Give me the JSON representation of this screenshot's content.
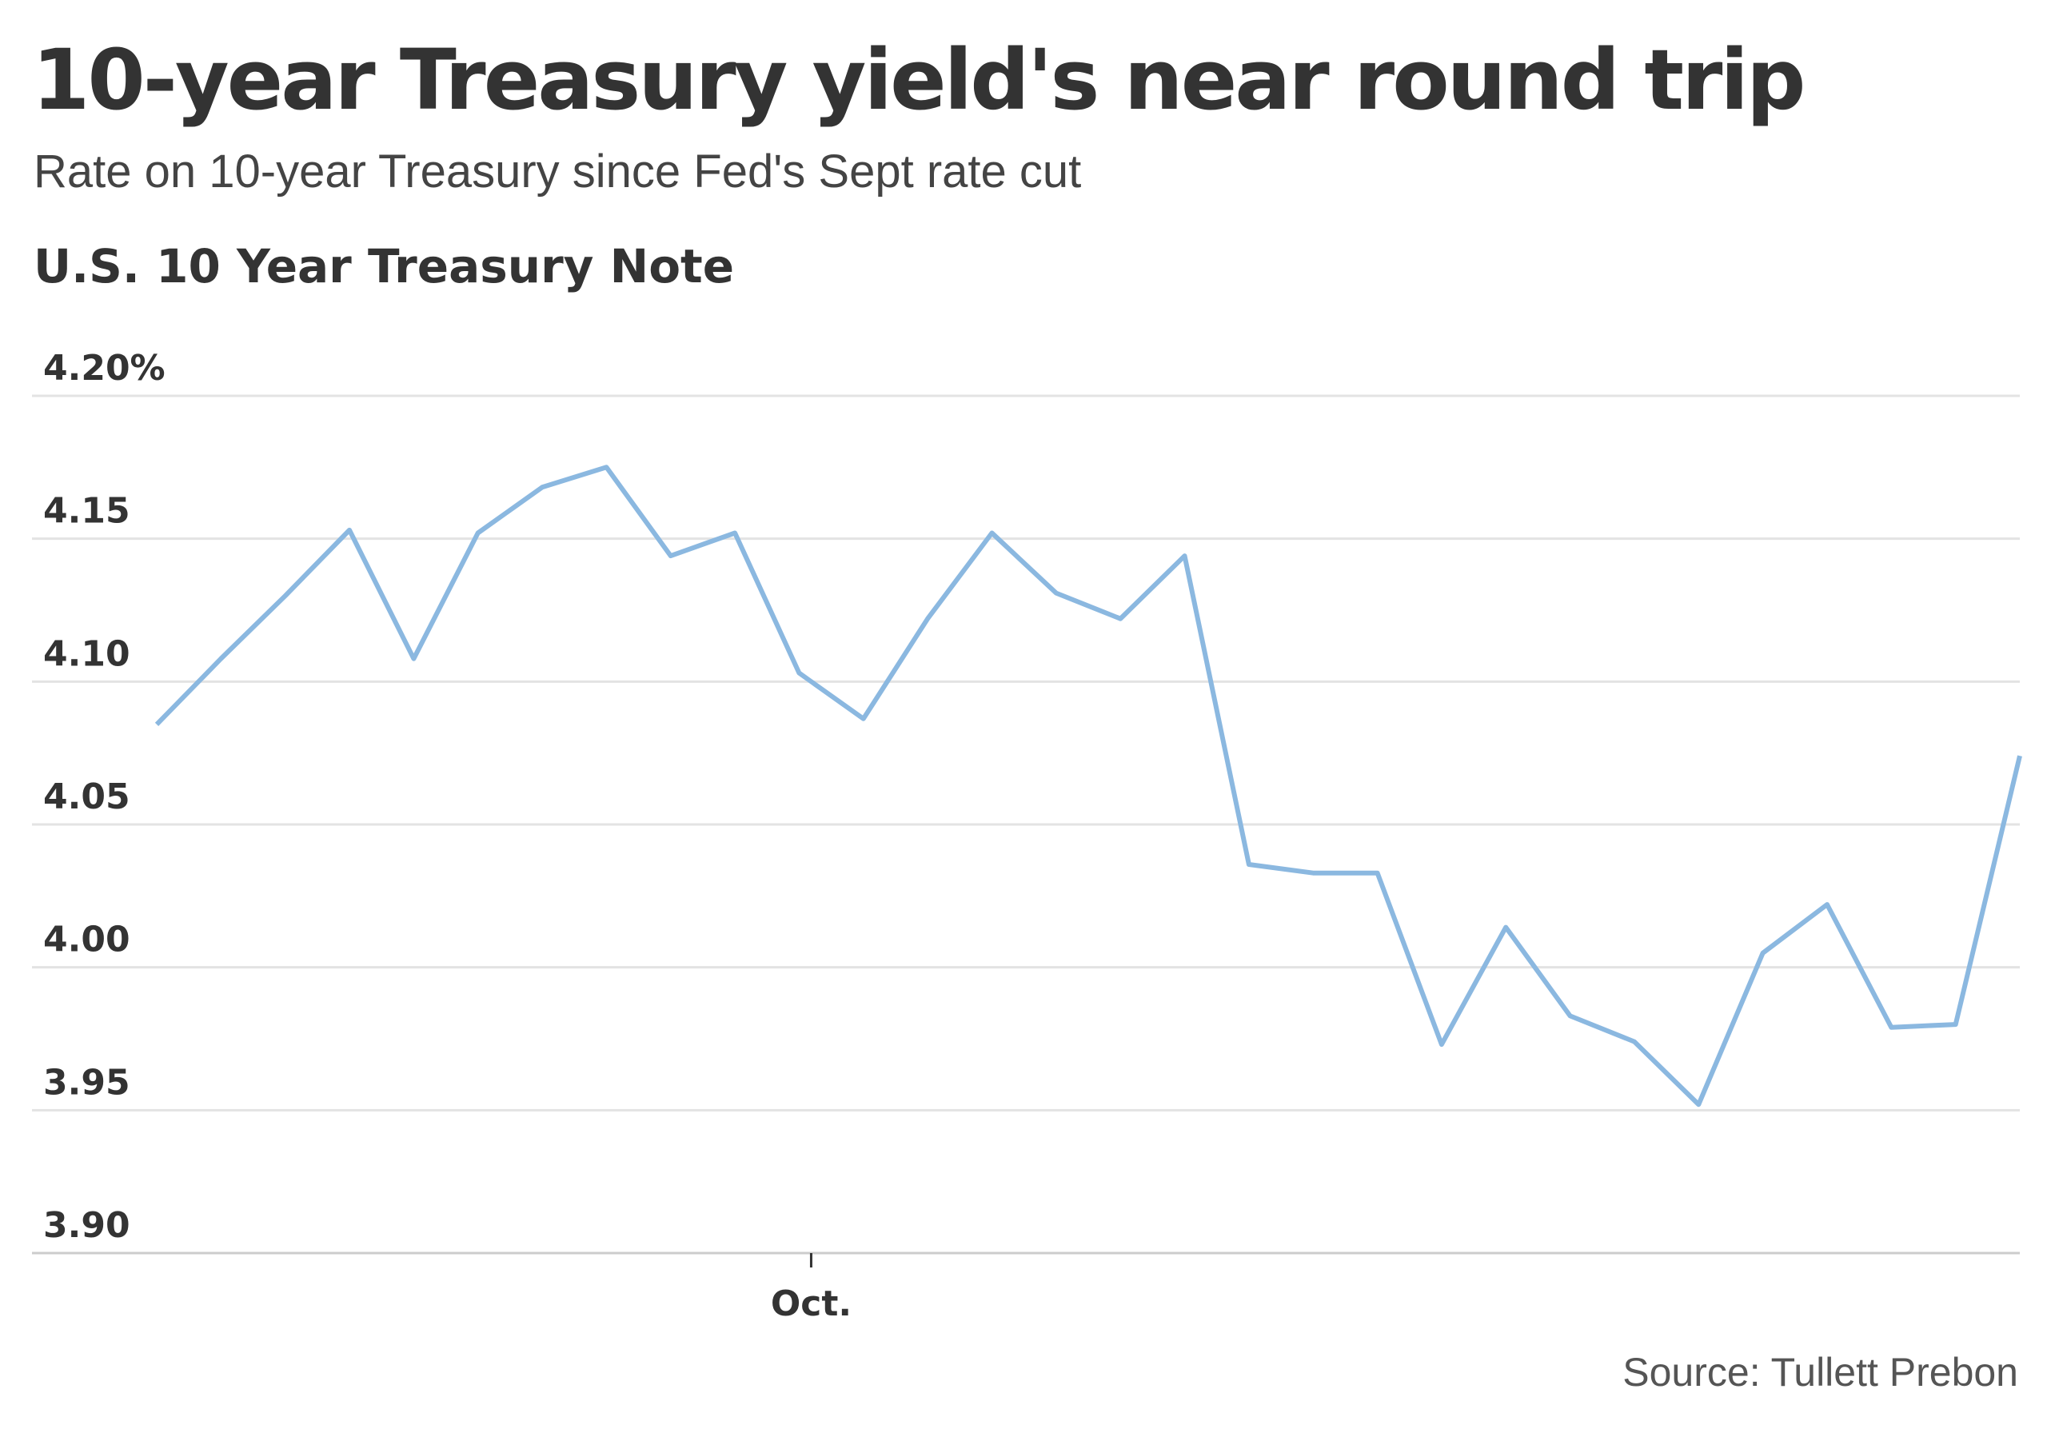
{
  "header": {
    "title": "10-year Treasury yield's near round trip",
    "subtitle": "Rate on 10-year Treasury since Fed's Sept rate cut",
    "chart_label": "U.S. 10 Year Treasury Note"
  },
  "footer": {
    "source": "Source: Tullett Prebon"
  },
  "colors": {
    "line": "#8bb8e0",
    "grid": "#e3e3e3",
    "axis": "#cccccc",
    "text": "#333333"
  },
  "chart_data": {
    "type": "line",
    "title": "U.S. 10 Year Treasury Note",
    "xlabel": "",
    "ylabel": "",
    "ylim": [
      3.9,
      4.2
    ],
    "yticks": [
      3.9,
      3.95,
      4.0,
      4.05,
      4.1,
      4.15,
      4.2
    ],
    "ytick_labels": [
      "3.90",
      "3.95",
      "4.00",
      "4.05",
      "4.10",
      "4.15",
      "4.20%"
    ],
    "x_tick_labels": [
      {
        "label": "Oct.",
        "index": 10
      }
    ],
    "grid": true,
    "legend": "none",
    "series": [
      {
        "values": [
          4.085,
          4.108,
          4.13,
          4.153,
          4.108,
          4.152,
          4.168,
          4.175,
          4.144,
          4.152,
          4.103,
          4.087,
          4.122,
          4.152,
          4.131,
          4.122,
          4.144,
          4.036,
          4.033,
          4.033,
          3.973,
          4.014,
          3.983,
          3.974,
          3.952,
          4.005,
          4.022,
          3.979,
          3.98,
          4.074
        ]
      }
    ]
  }
}
